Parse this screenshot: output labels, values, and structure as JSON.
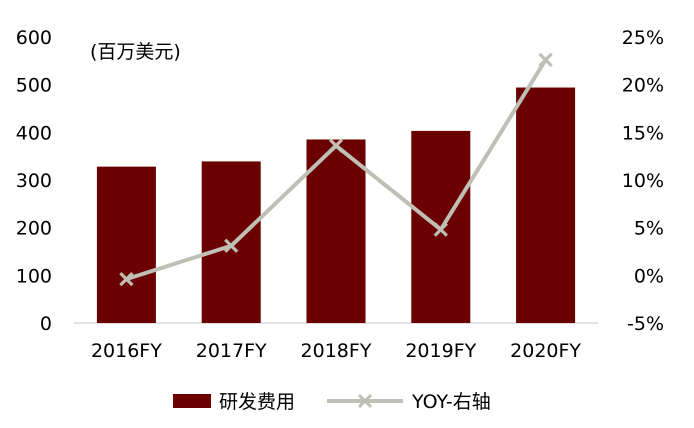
{
  "chart_data": {
    "type": "bar",
    "title": "",
    "unit_label": "(百万美元)",
    "categories": [
      "2016FY",
      "2017FY",
      "2018FY",
      "2019FY",
      "2020FY"
    ],
    "series": [
      {
        "name": "研发费用",
        "type": "bar",
        "axis": "left",
        "values": [
          328,
          339,
          385,
          403,
          494
        ]
      },
      {
        "name": "YOY-右轴",
        "type": "line",
        "axis": "right",
        "values": [
          -0.4,
          3.1,
          13.6,
          4.8,
          22.6
        ]
      }
    ],
    "y_left": {
      "min": 0,
      "max": 600,
      "ticks": [
        "0",
        "100",
        "200",
        "300",
        "400",
        "500",
        "600"
      ]
    },
    "y_right": {
      "min": -5,
      "max": 25,
      "ticks": [
        "-5%",
        "0%",
        "5%",
        "10%",
        "15%",
        "20%",
        "25%"
      ]
    },
    "grid": false,
    "legend_position": "bottom",
    "colors": {
      "bar": "#6b0000",
      "line": "#bfbfb5",
      "axis": "#d9d9d9"
    }
  }
}
